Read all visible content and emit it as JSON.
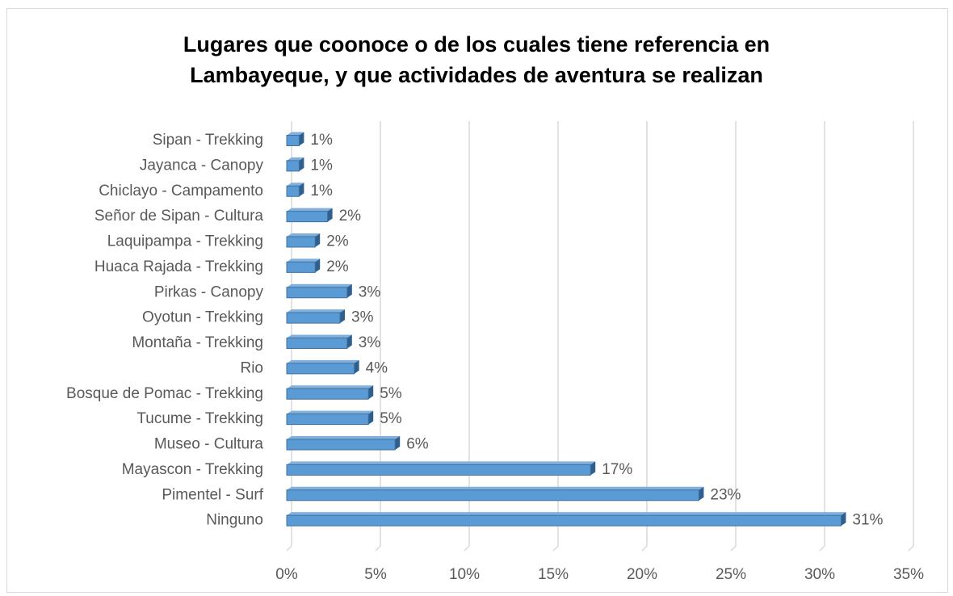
{
  "chart_data": {
    "type": "bar",
    "orientation": "horizontal",
    "title": "Lugares que coonoce o de los cuales tiene referencia en Lambayeque, y que actividades de aventura se realizan",
    "categories": [
      "Sipan - Trekking",
      "Jayanca - Canopy",
      "Chiclayo - Campamento",
      "Señor de Sipan - Cultura",
      "Laquipampa - Trekking",
      "Huaca Rajada - Trekking",
      "Pirkas - Canopy",
      "Oyotun - Trekking",
      "Montaña - Trekking",
      "Rio",
      "Bosque de Pomac - Trekking",
      "Tucume - Trekking",
      "Museo - Cultura",
      "Mayascon - Trekking",
      "Pimentel - Surf",
      "Ninguno"
    ],
    "values": [
      0.7,
      0.7,
      0.7,
      2.3,
      1.6,
      1.6,
      3.4,
      3.0,
      3.4,
      3.8,
      4.6,
      4.6,
      6.1,
      17.1,
      23.2,
      31.2
    ],
    "value_labels": [
      "1%",
      "1%",
      "1%",
      "2%",
      "2%",
      "2%",
      "3%",
      "3%",
      "3%",
      "4%",
      "5%",
      "5%",
      "6%",
      "17%",
      "23%",
      "31%"
    ],
    "color": "#5b9bd5",
    "xlim": [
      0,
      35
    ],
    "xticks": [
      {
        "value": 0,
        "label": "0%"
      },
      {
        "value": 5,
        "label": "5%"
      },
      {
        "value": 10,
        "label": "10%"
      },
      {
        "value": 15,
        "label": "15%"
      },
      {
        "value": 20,
        "label": "20%"
      },
      {
        "value": 25,
        "label": "25%"
      },
      {
        "value": 30,
        "label": "30%"
      },
      {
        "value": 35,
        "label": "35%"
      }
    ],
    "grid": true
  }
}
